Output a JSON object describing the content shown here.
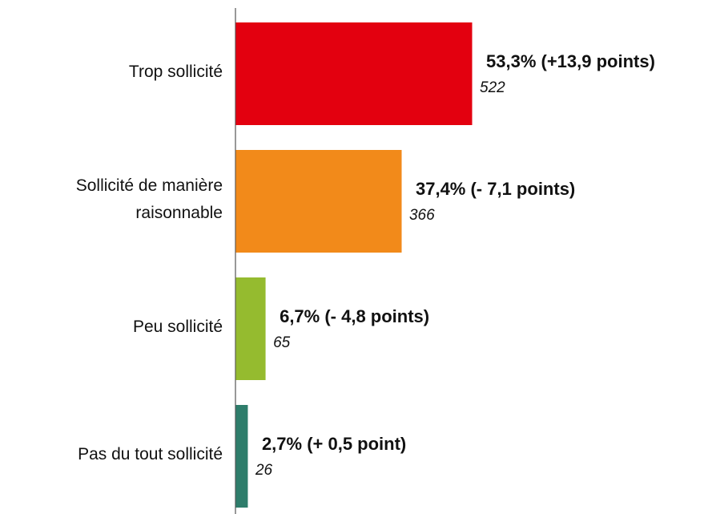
{
  "chart_data": {
    "type": "bar",
    "orientation": "horizontal",
    "categories": [
      "Trop sollicité",
      "Sollicité de manière\nraisonnable",
      "Peu sollicité",
      "Pas du tout sollicité"
    ],
    "values": [
      53.3,
      37.4,
      6.7,
      2.7
    ],
    "value_labels": [
      "53,3% (+13,9 points)",
      "37,4% (- 7,1 points)",
      "6,7% (- 4,8 points)",
      "2,7% (+ 0,5 point)"
    ],
    "counts": [
      522,
      366,
      65,
      26
    ],
    "colors": [
      "#e3000f",
      "#f28a1a",
      "#95bb2f",
      "#2e7d6b"
    ]
  }
}
